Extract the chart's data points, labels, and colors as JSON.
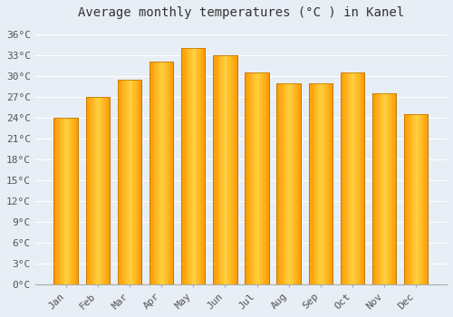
{
  "title": "Average monthly temperatures (°C ) in Kanel",
  "months": [
    "Jan",
    "Feb",
    "Mar",
    "Apr",
    "May",
    "Jun",
    "Jul",
    "Aug",
    "Sep",
    "Oct",
    "Nov",
    "Dec"
  ],
  "temperatures": [
    24,
    27,
    29.5,
    32,
    34,
    33,
    30.5,
    29,
    29,
    30.5,
    27.5,
    24.5
  ],
  "bar_color_main": "#FFA500",
  "bar_color_light": "#FFD060",
  "bar_color_dark": "#E08000",
  "bar_edge_color": "#B87000",
  "background_color": "#e8eef5",
  "plot_bg_color": "#e8eef5",
  "grid_color": "#ffffff",
  "text_color": "#555555",
  "ytick_values": [
    0,
    3,
    6,
    9,
    12,
    15,
    18,
    21,
    24,
    27,
    30,
    33,
    36
  ],
  "ylim": [
    0,
    37.5
  ],
  "title_fontsize": 10,
  "tick_fontsize": 8
}
